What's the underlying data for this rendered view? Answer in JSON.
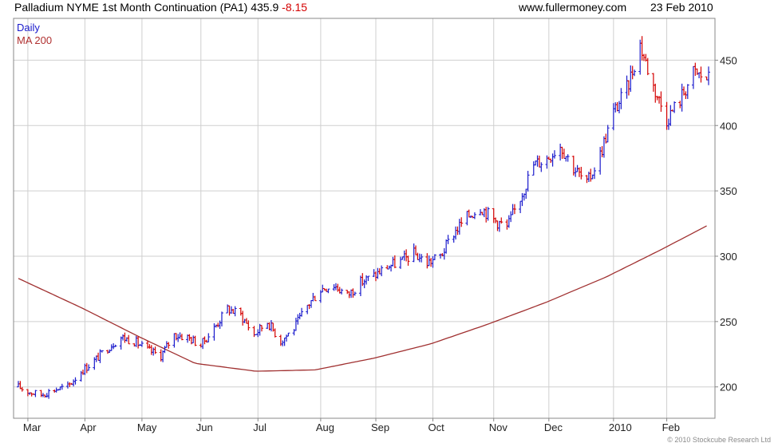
{
  "header": {
    "instrument": "Palladium NYME 1st Month Continuation (PA1)",
    "last": "435.9",
    "change": "-8.15",
    "site": "www.fullermoney.com",
    "date": "23 Feb 2010"
  },
  "legend": {
    "series1": "Daily",
    "series2": "MA 200"
  },
  "footer": "© 2010 Stockcube Research Ltd",
  "colors": {
    "up": "#1a1acc",
    "down": "#d40000",
    "ma": "#a03030",
    "grid": "#cfcfcf",
    "frame": "#888888"
  },
  "chart_data": {
    "type": "line",
    "title": "Palladium NYME 1st Month Continuation (PA1)",
    "xlabel": "",
    "ylabel": "",
    "ylim": [
      176,
      482
    ],
    "y_ticks": [
      200,
      250,
      300,
      350,
      400,
      450
    ],
    "y_axis_side": "right",
    "grid": true,
    "x_tick_labels": [
      "Mar",
      "Apr",
      "May",
      "Jun",
      "Jul",
      "Aug",
      "Sep",
      "Oct",
      "Nov",
      "Dec",
      "2010",
      "Feb"
    ],
    "x_tick_dates": [
      "2009-03-02",
      "2009-04-01",
      "2009-05-01",
      "2009-06-01",
      "2009-07-01",
      "2009-08-03",
      "2009-09-01",
      "2009-10-01",
      "2009-11-02",
      "2009-12-01",
      "2010-01-04",
      "2010-02-01"
    ],
    "x_start": "2009-02-25",
    "x_end": "2010-02-23",
    "series": [
      {
        "name": "Daily",
        "style": "ohlc-bars",
        "anchors": [
          [
            "2009-02-25",
            200
          ],
          [
            "2009-03-03",
            196
          ],
          [
            "2009-03-09",
            194
          ],
          [
            "2009-03-16",
            198
          ],
          [
            "2009-03-23",
            200
          ],
          [
            "2009-03-30",
            212
          ],
          [
            "2009-04-06",
            220
          ],
          [
            "2009-04-13",
            230
          ],
          [
            "2009-04-20",
            238
          ],
          [
            "2009-04-27",
            235
          ],
          [
            "2009-05-04",
            228
          ],
          [
            "2009-05-11",
            224
          ],
          [
            "2009-05-18",
            240
          ],
          [
            "2009-05-25",
            238
          ],
          [
            "2009-06-01",
            232
          ],
          [
            "2009-06-08",
            245
          ],
          [
            "2009-06-15",
            260
          ],
          [
            "2009-06-22",
            255
          ],
          [
            "2009-06-29",
            240
          ],
          [
            "2009-07-06",
            250
          ],
          [
            "2009-07-13",
            235
          ],
          [
            "2009-07-20",
            245
          ],
          [
            "2009-07-27",
            262
          ],
          [
            "2009-08-03",
            275
          ],
          [
            "2009-08-10",
            278
          ],
          [
            "2009-08-17",
            270
          ],
          [
            "2009-08-24",
            280
          ],
          [
            "2009-08-31",
            285
          ],
          [
            "2009-09-07",
            292
          ],
          [
            "2009-09-14",
            296
          ],
          [
            "2009-09-21",
            302
          ],
          [
            "2009-09-28",
            295
          ],
          [
            "2009-10-05",
            300
          ],
          [
            "2009-10-12",
            318
          ],
          [
            "2009-10-19",
            330
          ],
          [
            "2009-10-26",
            338
          ],
          [
            "2009-11-02",
            328
          ],
          [
            "2009-11-09",
            322
          ],
          [
            "2009-11-16",
            345
          ],
          [
            "2009-11-23",
            370
          ],
          [
            "2009-11-30",
            375
          ],
          [
            "2009-12-07",
            385
          ],
          [
            "2009-12-14",
            368
          ],
          [
            "2009-12-21",
            355
          ],
          [
            "2009-12-28",
            378
          ],
          [
            "2010-01-04",
            410
          ],
          [
            "2010-01-11",
            428
          ],
          [
            "2010-01-18",
            462
          ],
          [
            "2010-01-25",
            430
          ],
          [
            "2010-02-01",
            405
          ],
          [
            "2010-02-08",
            420
          ],
          [
            "2010-02-15",
            440
          ],
          [
            "2010-02-23",
            436
          ]
        ]
      },
      {
        "name": "MA 200",
        "style": "line",
        "anchors": [
          [
            "2009-02-25",
            283
          ],
          [
            "2009-03-31",
            260
          ],
          [
            "2009-04-30",
            238
          ],
          [
            "2009-05-29",
            218
          ],
          [
            "2009-06-30",
            212
          ],
          [
            "2009-07-31",
            213
          ],
          [
            "2009-08-31",
            222
          ],
          [
            "2009-09-30",
            233
          ],
          [
            "2009-10-30",
            248
          ],
          [
            "2009-11-30",
            265
          ],
          [
            "2009-12-31",
            284
          ],
          [
            "2010-01-29",
            305
          ],
          [
            "2010-02-23",
            324
          ]
        ]
      }
    ]
  }
}
